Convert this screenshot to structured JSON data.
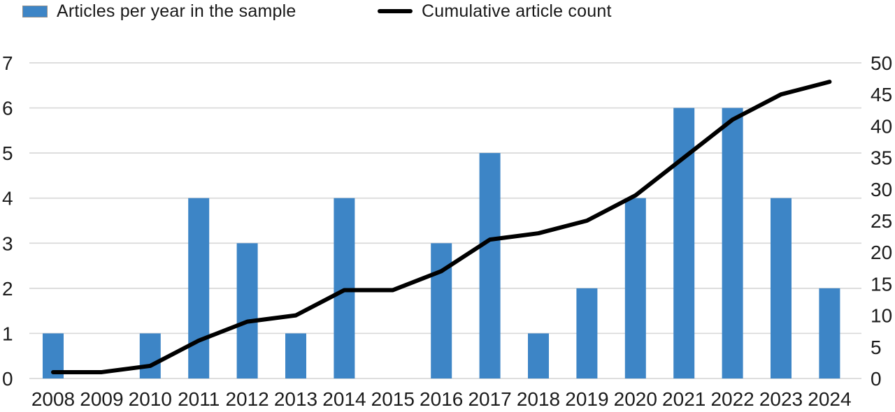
{
  "legend": {
    "items": [
      {
        "label": "Articles per year in the sample",
        "type": "bar"
      },
      {
        "label": "Cumulative article count",
        "type": "line"
      }
    ]
  },
  "colors": {
    "bar": "#3d85c6",
    "line": "#000000",
    "gridline": "#d9d9d9",
    "text": "#1c1c1c"
  },
  "chart_data": {
    "type": "bar",
    "subtype": "combo-bar-line",
    "categories": [
      "2008",
      "2009",
      "2010",
      "2011",
      "2012",
      "2013",
      "2014",
      "2015",
      "2016",
      "2017",
      "2018",
      "2019",
      "2020",
      "2021",
      "2022",
      "2023",
      "2024"
    ],
    "series": [
      {
        "name": "Articles per year in the sample",
        "type": "bar",
        "axis": "left",
        "color": "#3d85c6",
        "values": [
          1,
          0,
          1,
          4,
          3,
          1,
          4,
          0,
          3,
          5,
          1,
          2,
          4,
          6,
          6,
          4,
          2
        ]
      },
      {
        "name": "Cumulative article count",
        "type": "line",
        "axis": "right",
        "color": "#000000",
        "values": [
          1,
          1,
          2,
          6,
          9,
          10,
          14,
          14,
          17,
          22,
          23,
          25,
          29,
          35,
          41,
          45,
          47
        ]
      }
    ],
    "left_axis": {
      "min": 0,
      "max": 7,
      "ticks": [
        0,
        1,
        2,
        3,
        4,
        5,
        6,
        7
      ]
    },
    "right_axis": {
      "min": 0,
      "max": 50,
      "ticks": [
        0,
        5,
        10,
        15,
        20,
        25,
        30,
        35,
        40,
        45,
        50
      ]
    },
    "grid": true,
    "legend_position": "top"
  }
}
